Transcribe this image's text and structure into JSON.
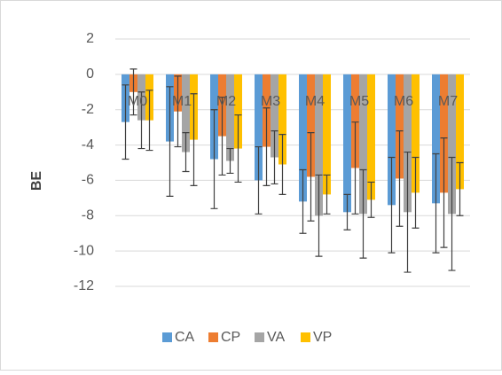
{
  "chart_data": {
    "type": "bar",
    "y_label": "BE",
    "categories": [
      "M0",
      "M1",
      "M2",
      "M3",
      "M4",
      "M5",
      "M6",
      "M7"
    ],
    "series": [
      {
        "name": "CA",
        "color": "#5b9bd5",
        "values": [
          -2.7,
          -3.8,
          -4.8,
          -6.0,
          -7.2,
          -7.8,
          -7.4,
          -7.3
        ],
        "errors": [
          2.1,
          3.1,
          2.8,
          1.9,
          1.8,
          1.0,
          2.7,
          2.8
        ]
      },
      {
        "name": "CP",
        "color": "#ed7d31",
        "values": [
          -1.0,
          -2.1,
          -3.5,
          -4.1,
          -5.8,
          -5.3,
          -5.9,
          -6.7
        ],
        "errors": [
          1.3,
          2.0,
          2.2,
          2.2,
          2.5,
          2.6,
          2.7,
          3.1
        ]
      },
      {
        "name": "VA",
        "color": "#a5a5a5",
        "values": [
          -2.6,
          -4.4,
          -4.9,
          -4.7,
          -8.0,
          -7.9,
          -7.8,
          -7.9
        ],
        "errors": [
          1.6,
          1.1,
          0.7,
          1.5,
          2.3,
          2.5,
          3.4,
          3.2
        ]
      },
      {
        "name": "VP",
        "color": "#ffc000",
        "values": [
          -2.6,
          -3.7,
          -4.2,
          -5.1,
          -6.8,
          -7.1,
          -6.7,
          -6.5
        ],
        "errors": [
          1.7,
          2.6,
          1.9,
          1.7,
          1.1,
          1.0,
          2.0,
          1.5
        ]
      }
    ],
    "ylim": [
      -12,
      2
    ],
    "yticks": [
      -12,
      -10,
      -8,
      -6,
      -4,
      -2,
      0,
      2
    ],
    "grid": true,
    "legend": "bottom"
  }
}
